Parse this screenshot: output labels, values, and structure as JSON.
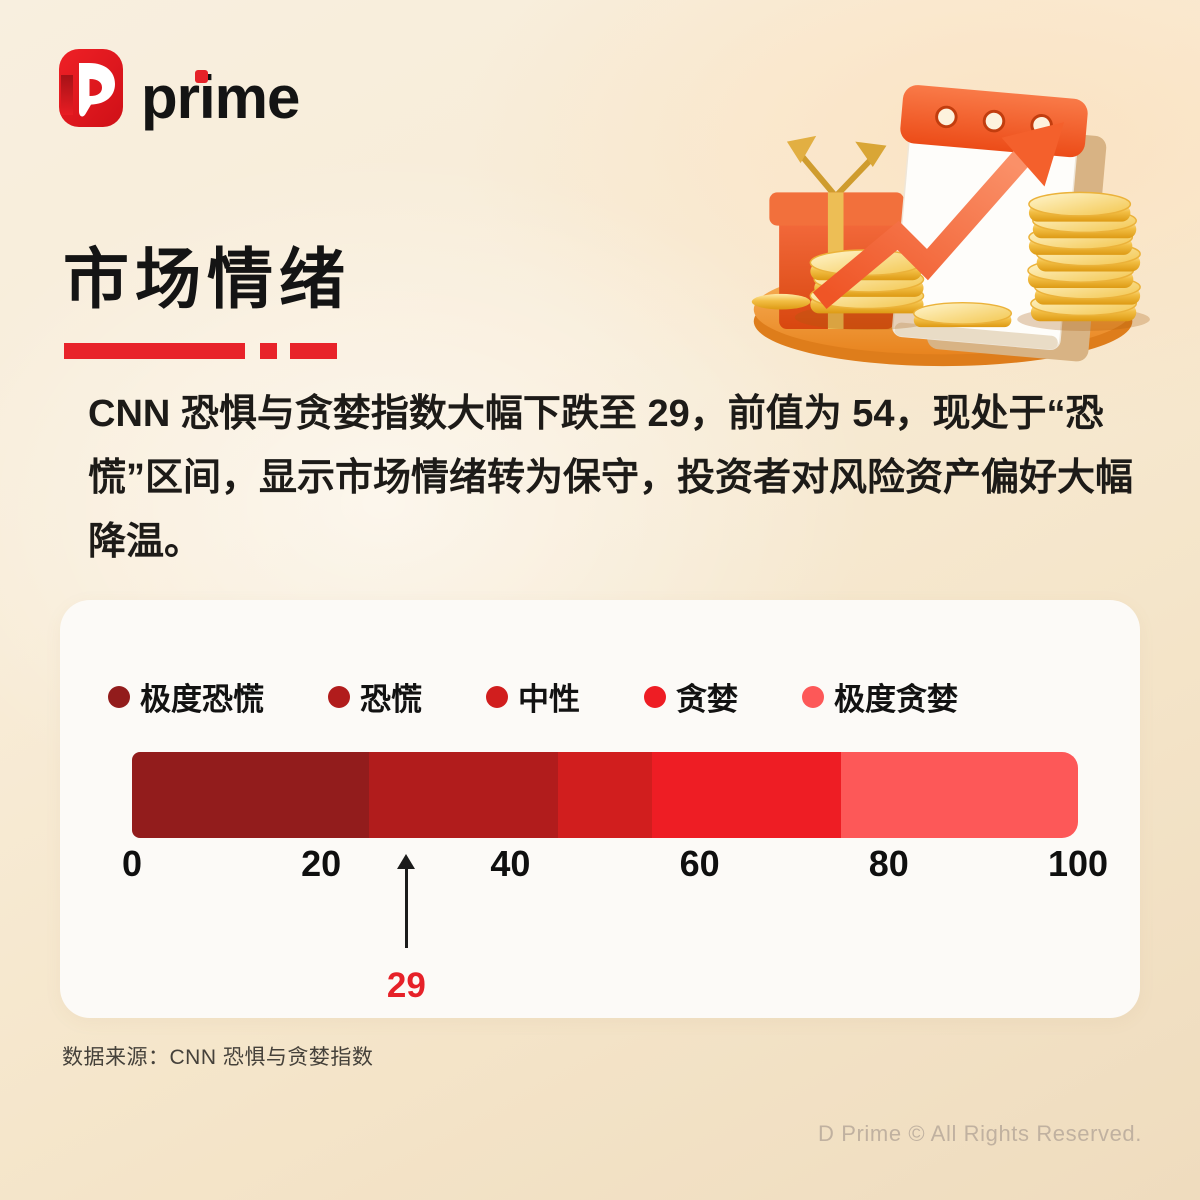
{
  "brand": {
    "logo_text": "prime",
    "copyright": "D Prime © All Rights Reserved."
  },
  "header": {
    "title": "市场情绪"
  },
  "summary": {
    "text": "CNN 恐惧与贪婪指数大幅下跌至 29，前值为 54，现处于“恐慌”区间，显示市场情绪转为保守，投资者对风险资产偏好大幅降温。"
  },
  "chart_data": {
    "type": "bar",
    "subtype": "segmented-horizontal-gauge",
    "title": "",
    "xlabel": "",
    "ylabel": "",
    "xlim": [
      0,
      100
    ],
    "axis_ticks": [
      0,
      20,
      40,
      60,
      80,
      100
    ],
    "segments": [
      {
        "label": "极度恐慌",
        "range": [
          0,
          25
        ],
        "color": "#921c1c"
      },
      {
        "label": "恐慌",
        "range": [
          25,
          45
        ],
        "color": "#b11c1c"
      },
      {
        "label": "中性",
        "range": [
          45,
          55
        ],
        "color": "#d11e1e"
      },
      {
        "label": "贪婪",
        "range": [
          55,
          75
        ],
        "color": "#ee1d24"
      },
      {
        "label": "极度贪婪",
        "range": [
          75,
          100
        ],
        "color": "#fd5858"
      }
    ],
    "marker": {
      "value": 29,
      "label": "29",
      "color": "#e62129"
    },
    "legend_position": "top",
    "grid": false
  },
  "footer": {
    "source": "数据来源：CNN 恐惧与贪婪指数"
  },
  "accent_colors": {
    "brand_red": "#e31e24",
    "underline_red": "#e8232a",
    "background_cream": "#f6e9d3"
  }
}
